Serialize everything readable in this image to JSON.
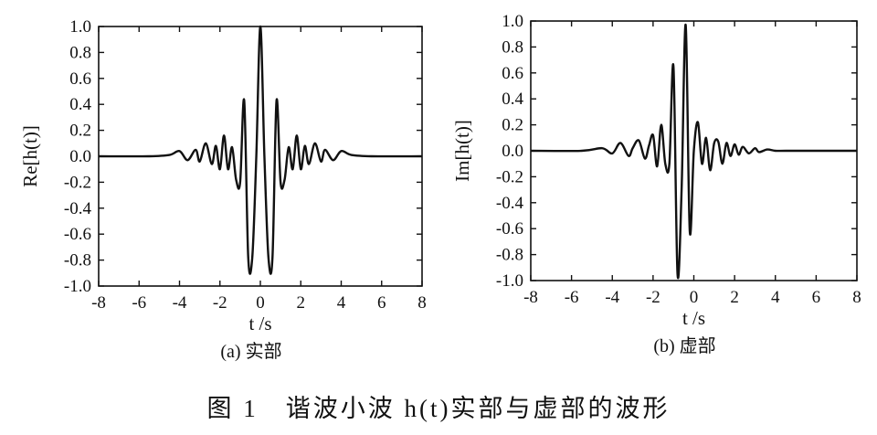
{
  "figure_caption": "图 1　谐波小波 h(t)实部与虚部的波形",
  "chart_data": [
    {
      "type": "line",
      "caption": "(a) 实部",
      "xlabel": "t /s",
      "ylabel": "Re[h(t)]",
      "xlim": [
        -8,
        8
      ],
      "ylim": [
        -1.0,
        1.0
      ],
      "xticks": [
        -8,
        -6,
        -4,
        -2,
        0,
        2,
        4,
        6,
        8
      ],
      "yticks": [
        1.0,
        0.8,
        0.6,
        0.4,
        0.2,
        0.0,
        -0.2,
        -0.4,
        -0.6,
        -0.8,
        -1.0
      ],
      "ytick_labels": [
        "1.0",
        "0.8",
        "0.6",
        "0.4",
        "0.2",
        "0.0",
        "-0.2",
        "-0.4",
        "-0.6",
        "-0.8",
        "-1.0"
      ],
      "xtick_labels": [
        "-8",
        "-6",
        "-4",
        "-2",
        "0",
        "2",
        "4",
        "6",
        "8"
      ],
      "grid": false,
      "series": [
        {
          "x": [
            -8.0,
            -5.5,
            -4.5,
            -4.0,
            -3.6,
            -3.2,
            -3.0,
            -2.7,
            -2.4,
            -2.2,
            -2.0,
            -1.8,
            -1.6,
            -1.4,
            -1.2,
            -1.0,
            -0.8,
            -0.6,
            -0.4,
            -0.2,
            0.0,
            0.2,
            0.4,
            0.6,
            0.8,
            1.0,
            1.2,
            1.4,
            1.6,
            1.8,
            2.0,
            2.2,
            2.4,
            2.7,
            3.0,
            3.2,
            3.6,
            4.0,
            4.5,
            5.5,
            8.0
          ],
          "y": [
            0.0,
            0.0,
            0.01,
            0.04,
            -0.03,
            0.05,
            -0.04,
            0.1,
            -0.06,
            0.08,
            -0.1,
            0.16,
            -0.1,
            0.07,
            -0.18,
            -0.2,
            0.43,
            -0.78,
            -0.78,
            0.0,
            1.0,
            0.0,
            -0.78,
            -0.78,
            0.43,
            -0.2,
            -0.18,
            0.07,
            -0.1,
            0.16,
            -0.1,
            0.08,
            -0.06,
            0.1,
            -0.04,
            0.05,
            -0.03,
            0.04,
            0.01,
            0.0,
            0.0
          ]
        }
      ]
    },
    {
      "type": "line",
      "caption": "(b) 虚部",
      "xlabel": "t /s",
      "ylabel": "Im[h(t)]",
      "xlim": [
        -8,
        8
      ],
      "ylim": [
        -1.0,
        1.0
      ],
      "xticks": [
        -8,
        -6,
        -4,
        -2,
        0,
        2,
        4,
        6,
        8
      ],
      "yticks": [
        1.0,
        0.8,
        0.6,
        0.4,
        0.2,
        0.0,
        -0.2,
        -0.4,
        -0.6,
        -0.8,
        -1.0
      ],
      "ytick_labels": [
        "1.0",
        "0.8",
        "0.6",
        "0.4",
        "0.2",
        "0.0",
        "-0.2",
        "-0.4",
        "-0.6",
        "-0.8",
        "-1.0"
      ],
      "xtick_labels": [
        "-8",
        "-6",
        "-4",
        "-2",
        "0",
        "2",
        "4",
        "6",
        "8"
      ],
      "grid": false,
      "series": [
        {
          "x": [
            -8.0,
            -5.5,
            -4.5,
            -4.0,
            -3.6,
            -3.2,
            -3.0,
            -2.7,
            -2.4,
            -2.2,
            -2.0,
            -1.8,
            -1.6,
            -1.4,
            -1.2,
            -1.0,
            -0.8,
            -0.6,
            -0.4,
            -0.2,
            0.0,
            0.2,
            0.4,
            0.6,
            0.8,
            1.0,
            1.2,
            1.4,
            1.6,
            1.8,
            2.0,
            2.2,
            2.4,
            2.7,
            3.0,
            3.2,
            3.6,
            4.0,
            4.5,
            5.5,
            8.0
          ],
          "y": [
            0.0,
            0.0,
            0.02,
            -0.02,
            0.06,
            -0.04,
            0.02,
            0.08,
            -0.06,
            0.04,
            0.12,
            -0.12,
            0.2,
            -0.1,
            -0.1,
            0.65,
            -0.95,
            -0.3,
            0.97,
            -0.62,
            0.0,
            0.22,
            -0.1,
            0.1,
            -0.15,
            0.06,
            0.07,
            -0.1,
            0.06,
            -0.04,
            0.05,
            -0.03,
            0.03,
            -0.02,
            0.02,
            -0.01,
            0.01,
            0.0,
            0.0,
            0.0,
            0.0
          ]
        }
      ]
    }
  ]
}
